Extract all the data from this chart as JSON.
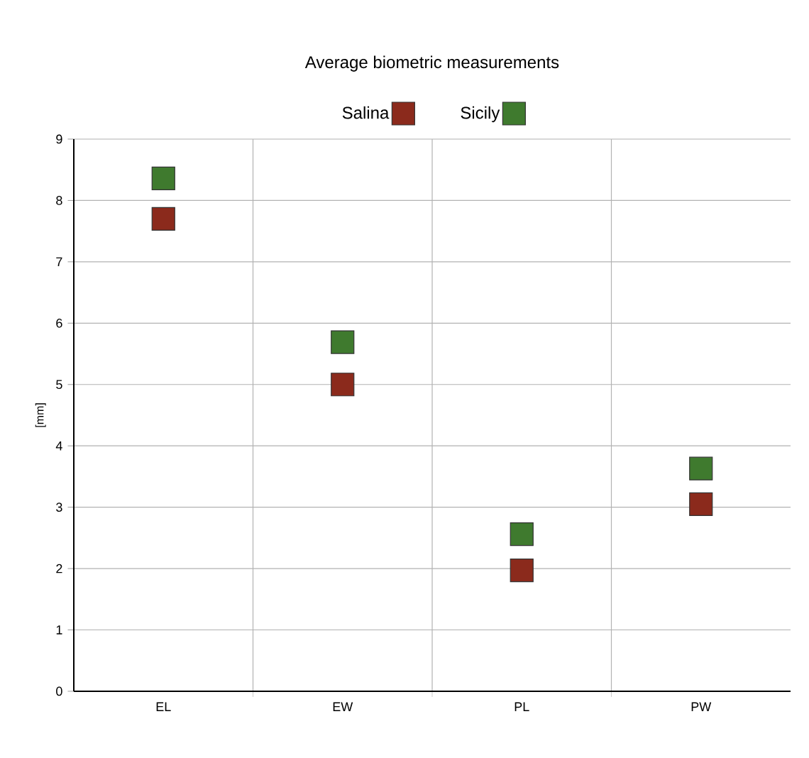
{
  "chart_data": {
    "type": "scatter",
    "title": "Average biometric measurements",
    "ylabel": "[mm]",
    "categories": [
      "EL",
      "EW",
      "PL",
      "PW"
    ],
    "series": [
      {
        "name": "Salina",
        "color": "#8b2a1c",
        "values": [
          7.7,
          5.0,
          1.97,
          3.05
        ]
      },
      {
        "name": "Sicily",
        "color": "#3f7a2e",
        "values": [
          8.36,
          5.69,
          2.56,
          3.63
        ]
      }
    ],
    "ylim": [
      0,
      9
    ],
    "yticks": [
      0,
      1,
      2,
      3,
      4,
      5,
      6,
      7,
      8,
      9
    ],
    "grid": true,
    "legend": "top",
    "marker": "square"
  }
}
